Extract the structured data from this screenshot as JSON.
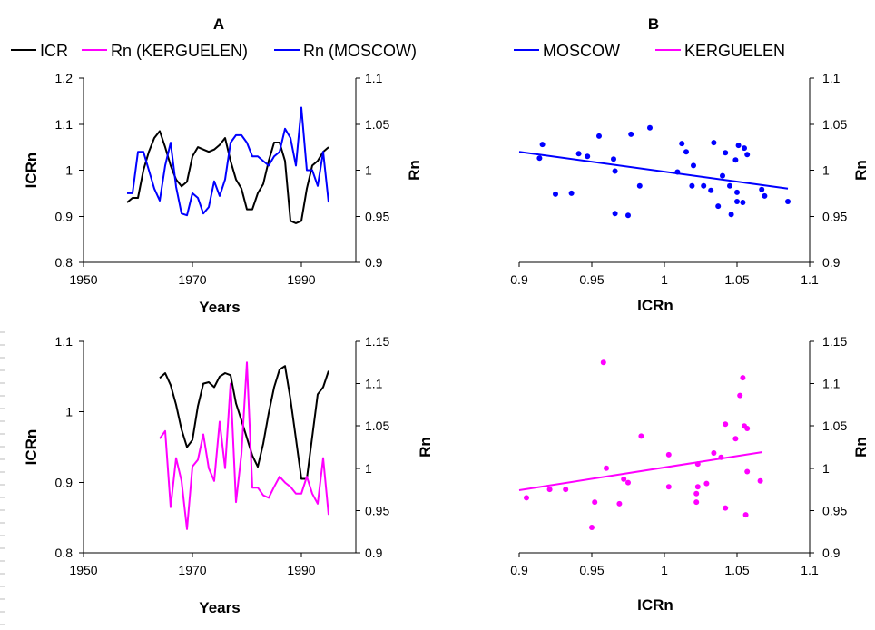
{
  "panels": {
    "A": {
      "label": "A"
    },
    "B": {
      "label": "B"
    }
  },
  "legend_A": [
    {
      "name": "ICR",
      "color": "#000000"
    },
    {
      "name": "Rn (KERGUELEN)",
      "color": "#ff00ff"
    },
    {
      "name": "Rn (MOSCOW)",
      "color": "#0000ff"
    }
  ],
  "legend_B": [
    {
      "name": "MOSCOW",
      "color": "#0000ff"
    },
    {
      "name": "KERGUELEN",
      "color": "#ff00ff"
    }
  ],
  "chart_data": [
    {
      "id": "A-top",
      "type": "line",
      "xlabel": "Years",
      "ylabel": "ICRn",
      "y2label": "Rn",
      "xlim": [
        1950,
        2000
      ],
      "xticks": [
        1950,
        1970,
        1990
      ],
      "ylim": [
        0.8,
        1.2
      ],
      "yticks": [
        0.8,
        0.9,
        1,
        1.1,
        1.2
      ],
      "ytick_labels": [
        "0.8",
        "0.9",
        "1",
        "1.1",
        "1.2"
      ],
      "y2lim": [
        0.9,
        1.1
      ],
      "y2ticks": [
        0.9,
        0.95,
        1,
        1.05,
        1.1
      ],
      "y2tick_labels": [
        "0.9",
        "0.95",
        "1",
        "1.05",
        "1.1"
      ],
      "series": [
        {
          "name": "ICR",
          "color": "#000000",
          "axis": "left",
          "x": [
            1958,
            1959,
            1960,
            1961,
            1962,
            1963,
            1964,
            1965,
            1966,
            1967,
            1968,
            1969,
            1970,
            1971,
            1972,
            1973,
            1974,
            1975,
            1976,
            1977,
            1978,
            1979,
            1980,
            1981,
            1982,
            1983,
            1984,
            1985,
            1986,
            1987,
            1988,
            1989,
            1990,
            1991,
            1992,
            1993,
            1994,
            1995
          ],
          "y": [
            0.93,
            0.94,
            0.94,
            1.0,
            1.04,
            1.07,
            1.085,
            1.05,
            1.01,
            0.98,
            0.965,
            0.975,
            1.03,
            1.05,
            1.045,
            1.04,
            1.045,
            1.055,
            1.07,
            1.02,
            0.98,
            0.96,
            0.915,
            0.915,
            0.95,
            0.97,
            1.02,
            1.06,
            1.06,
            1.02,
            0.89,
            0.885,
            0.89,
            0.96,
            1.01,
            1.02,
            1.04,
            1.05
          ]
        },
        {
          "name": "Rn (MOSCOW)",
          "color": "#0000ff",
          "axis": "right",
          "x": [
            1958,
            1959,
            1960,
            1961,
            1962,
            1963,
            1964,
            1965,
            1966,
            1967,
            1968,
            1969,
            1970,
            1971,
            1972,
            1973,
            1974,
            1975,
            1976,
            1977,
            1978,
            1979,
            1980,
            1981,
            1982,
            1983,
            1984,
            1985,
            1986,
            1987,
            1988,
            1989,
            1990,
            1991,
            1992,
            1993,
            1994,
            1995
          ],
          "y": [
            0.975,
            0.975,
            1.02,
            1.02,
            1.0,
            0.98,
            0.967,
            1.005,
            1.03,
            0.982,
            0.953,
            0.951,
            0.975,
            0.97,
            0.953,
            0.96,
            0.988,
            0.972,
            0.99,
            1.03,
            1.038,
            1.038,
            1.03,
            1.015,
            1.015,
            1.01,
            1.005,
            1.015,
            1.02,
            1.045,
            1.035,
            1.005,
            1.068,
            1.0,
            1.0,
            0.983,
            1.02,
            0.965
          ]
        }
      ]
    },
    {
      "id": "B-top",
      "type": "scatter",
      "xlabel": "ICRn",
      "ylabel": "Rn",
      "xlim": [
        0.9,
        1.1
      ],
      "xticks": [
        0.9,
        0.95,
        1,
        1.05,
        1.1
      ],
      "xtick_labels": [
        "0.9",
        "0.95",
        "1",
        "1.05",
        "1.1"
      ],
      "ylim": [
        0.9,
        1.1
      ],
      "yticks": [
        0.9,
        0.95,
        1,
        1.05,
        1.1
      ],
      "ytick_labels": [
        "0.9",
        "0.95",
        "1",
        "1.05",
        "1.1"
      ],
      "series": [
        {
          "name": "MOSCOW",
          "color": "#0000ff",
          "x": [
            0.914,
            0.916,
            0.925,
            0.936,
            0.941,
            0.947,
            0.955,
            0.965,
            0.966,
            0.966,
            0.975,
            0.977,
            0.983,
            0.99,
            1.009,
            1.012,
            1.015,
            1.019,
            1.02,
            1.027,
            1.032,
            1.034,
            1.037,
            1.04,
            1.042,
            1.045,
            1.046,
            1.049,
            1.05,
            1.05,
            1.051,
            1.054,
            1.055,
            1.057,
            1.067,
            1.069,
            1.085
          ],
          "y": [
            1.013,
            1.028,
            0.974,
            0.975,
            1.018,
            1.015,
            1.037,
            1.012,
            0.999,
            0.953,
            0.951,
            1.039,
            0.983,
            1.046,
            0.998,
            1.029,
            1.02,
            0.983,
            1.005,
            0.983,
            0.978,
            1.03,
            0.961,
            0.994,
            1.019,
            0.983,
            0.952,
            1.011,
            0.976,
            0.966,
            1.027,
            0.965,
            1.024,
            1.017,
            0.979,
            0.972,
            0.966
          ]
        },
        {
          "name": "MOSCOW fit",
          "kind": "trendline",
          "color": "#0000ff",
          "x": [
            0.9,
            1.085
          ],
          "y": [
            1.02,
            0.98
          ]
        }
      ]
    },
    {
      "id": "A-bottom",
      "type": "line",
      "xlabel": "Years",
      "ylabel": "ICRn",
      "y2label": "Rn",
      "xlim": [
        1950,
        2000
      ],
      "xticks": [
        1950,
        1970,
        1990
      ],
      "ylim": [
        0.8,
        1.1
      ],
      "yticks": [
        0.8,
        0.9,
        1,
        1.1
      ],
      "ytick_labels": [
        "0.8",
        "0.9",
        "1",
        "1.1"
      ],
      "y2lim": [
        0.9,
        1.15
      ],
      "y2ticks": [
        0.9,
        0.95,
        1,
        1.05,
        1.1,
        1.15
      ],
      "y2tick_labels": [
        "0.9",
        "0.95",
        "1",
        "1.05",
        "1.1",
        "1.15"
      ],
      "series": [
        {
          "name": "ICR",
          "color": "#000000",
          "axis": "left",
          "x": [
            1964,
            1965,
            1966,
            1967,
            1968,
            1969,
            1970,
            1971,
            1972,
            1973,
            1974,
            1975,
            1976,
            1977,
            1978,
            1979,
            1980,
            1981,
            1982,
            1983,
            1984,
            1985,
            1986,
            1987,
            1988,
            1989,
            1990,
            1991,
            1992,
            1993,
            1994,
            1995
          ],
          "y": [
            1.048,
            1.055,
            1.038,
            1.01,
            0.975,
            0.95,
            0.96,
            1.008,
            1.04,
            1.042,
            1.035,
            1.05,
            1.055,
            1.052,
            1.012,
            0.988,
            0.963,
            0.938,
            0.922,
            0.955,
            0.998,
            1.035,
            1.06,
            1.065,
            1.018,
            0.962,
            0.905,
            0.905,
            0.965,
            1.025,
            1.035,
            1.058
          ]
        },
        {
          "name": "Rn (KERGUELEN)",
          "color": "#ff00ff",
          "axis": "right",
          "x": [
            1964,
            1965,
            1966,
            1967,
            1968,
            1969,
            1970,
            1971,
            1972,
            1973,
            1974,
            1975,
            1976,
            1977,
            1978,
            1979,
            1980,
            1981,
            1982,
            1983,
            1984,
            1985,
            1986,
            1987,
            1988,
            1989,
            1990,
            1991,
            1992,
            1993,
            1994,
            1995
          ],
          "y": [
            1.035,
            1.044,
            0.954,
            1.012,
            0.985,
            0.928,
            1.002,
            1.01,
            1.04,
            1.0,
            0.985,
            1.055,
            1.0,
            1.1,
            0.96,
            1.017,
            1.125,
            0.977,
            0.977,
            0.968,
            0.965,
            0.978,
            0.99,
            0.983,
            0.978,
            0.97,
            0.97,
            0.99,
            0.97,
            0.958,
            1.012,
            0.945
          ]
        }
      ]
    },
    {
      "id": "B-bottom",
      "type": "scatter",
      "xlabel": "ICRn",
      "ylabel": "Rn",
      "xlim": [
        0.9,
        1.1
      ],
      "xticks": [
        0.9,
        0.95,
        1,
        1.05,
        1.1
      ],
      "xtick_labels": [
        "0.9",
        "0.95",
        "1",
        "1.05",
        "1.1"
      ],
      "ylim": [
        0.9,
        1.15
      ],
      "yticks": [
        0.9,
        0.95,
        1,
        1.05,
        1.1,
        1.15
      ],
      "ytick_labels": [
        "0.9",
        "0.95",
        "1",
        "1.05",
        "1.1",
        "1.15"
      ],
      "series": [
        {
          "name": "KERGUELEN",
          "color": "#ff00ff",
          "x": [
            0.905,
            0.921,
            0.932,
            0.95,
            0.952,
            0.958,
            0.96,
            0.969,
            0.972,
            0.975,
            0.984,
            1.003,
            1.003,
            1.022,
            1.022,
            1.023,
            1.023,
            1.029,
            1.034,
            1.039,
            1.042,
            1.042,
            1.049,
            1.052,
            1.054,
            1.055,
            1.056,
            1.057,
            1.057,
            1.066
          ],
          "y": [
            0.965,
            0.975,
            0.975,
            0.93,
            0.96,
            1.125,
            1.0,
            0.958,
            0.987,
            0.983,
            1.038,
            0.978,
            1.016,
            0.97,
            0.96,
            1.005,
            0.978,
            0.982,
            1.018,
            1.013,
            0.953,
            1.052,
            1.035,
            1.086,
            1.107,
            1.05,
            0.945,
            1.047,
            0.996,
            0.985
          ]
        },
        {
          "name": "KERGUELEN fit",
          "kind": "trendline",
          "color": "#ff00ff",
          "x": [
            0.9,
            1.067
          ],
          "y": [
            0.974,
            1.019
          ]
        }
      ]
    }
  ]
}
